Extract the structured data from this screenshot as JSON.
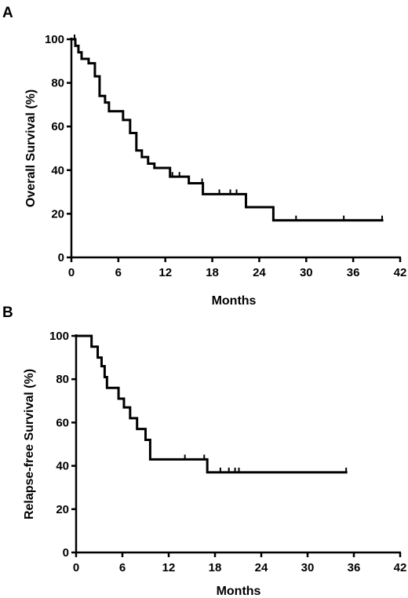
{
  "chart_data": [
    {
      "type": "line",
      "step": true,
      "panel": "A",
      "title": "",
      "xlabel": "Months",
      "ylabel": "Overall Survival (%)",
      "xlim": [
        0,
        42
      ],
      "ylim": [
        0,
        100
      ],
      "xticks": [
        0,
        6,
        12,
        18,
        24,
        30,
        36,
        42
      ],
      "yticks": [
        0,
        20,
        40,
        60,
        80,
        100
      ],
      "grid": false,
      "series": [
        {
          "x": [
            0,
            0.5,
            0.9,
            1.3,
            2.2,
            3.0,
            3.6,
            4.3,
            4.8,
            6.6,
            7.5,
            8.3,
            9.0,
            9.8,
            10.6,
            12.6,
            15.0,
            16.8,
            22.3,
            25.8,
            39.7
          ],
          "y": [
            100,
            97,
            94,
            91,
            89,
            83,
            74,
            71,
            67,
            63,
            57,
            49,
            46,
            43,
            41,
            37,
            34,
            29,
            23,
            17,
            17
          ]
        }
      ],
      "censored": [
        {
          "x": 0.4,
          "y": 100
        },
        {
          "x": 12.9,
          "y": 37
        },
        {
          "x": 13.8,
          "y": 37
        },
        {
          "x": 16.7,
          "y": 34
        },
        {
          "x": 18.9,
          "y": 29
        },
        {
          "x": 20.3,
          "y": 29
        },
        {
          "x": 21.1,
          "y": 29
        },
        {
          "x": 28.7,
          "y": 17
        },
        {
          "x": 34.8,
          "y": 17
        },
        {
          "x": 39.7,
          "y": 17
        }
      ]
    },
    {
      "type": "line",
      "step": true,
      "panel": "B",
      "title": "",
      "xlabel": "Months",
      "ylabel": "Relapse-free Survival (%)",
      "xlim": [
        0,
        42
      ],
      "ylim": [
        0,
        100
      ],
      "xticks": [
        0,
        6,
        12,
        18,
        24,
        30,
        36,
        42
      ],
      "yticks": [
        0,
        20,
        40,
        60,
        80,
        100
      ],
      "grid": false,
      "series": [
        {
          "x": [
            0,
            2.0,
            2.8,
            3.3,
            3.7,
            4.0,
            5.5,
            6.2,
            7.0,
            7.9,
            9.0,
            9.6,
            17.0,
            35.0
          ],
          "y": [
            100,
            95,
            90,
            86,
            81,
            76,
            71,
            67,
            62,
            57,
            52,
            43,
            37,
            37
          ]
        }
      ],
      "censored": [
        {
          "x": 14.1,
          "y": 43
        },
        {
          "x": 16.6,
          "y": 43
        },
        {
          "x": 18.7,
          "y": 37
        },
        {
          "x": 19.8,
          "y": 37
        },
        {
          "x": 20.6,
          "y": 37
        },
        {
          "x": 21.1,
          "y": 37
        },
        {
          "x": 35.0,
          "y": 37
        }
      ]
    }
  ]
}
